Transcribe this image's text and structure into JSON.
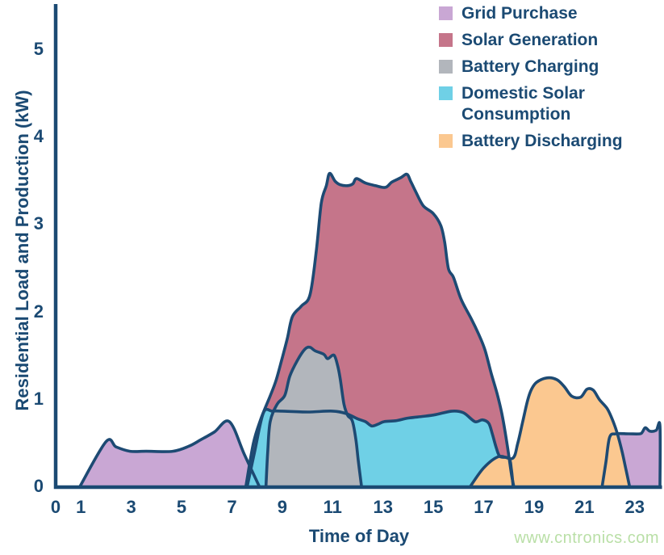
{
  "chart_data": {
    "type": "area",
    "title": "",
    "xlabel": "Time of Day",
    "ylabel": "Residential Load and Production (kW)",
    "xlim": [
      0,
      24
    ],
    "ylim": [
      0,
      5.5
    ],
    "x_ticks": [
      0,
      1,
      3,
      5,
      7,
      9,
      11,
      13,
      15,
      17,
      19,
      21,
      23
    ],
    "y_ticks": [
      0,
      1,
      2,
      3,
      4,
      5
    ],
    "grid": false,
    "legend_position": "top-right",
    "outline_color": "#1d4a73",
    "axis_color": "#1b4a73",
    "series": [
      {
        "id": "grid-purchase",
        "name": "Grid Purchase",
        "color": "#c9a7d4",
        "segments": [
          [
            [
              0.95,
              0
            ],
            [
              2.0,
              0.52
            ],
            [
              2.4,
              0.46
            ],
            [
              2.95,
              0.41
            ],
            [
              3.6,
              0.41
            ],
            [
              4.65,
              0.41
            ],
            [
              5.3,
              0.47
            ],
            [
              5.75,
              0.54
            ],
            [
              6.3,
              0.63
            ],
            [
              6.9,
              0.75
            ],
            [
              7.5,
              0.37
            ],
            [
              8.1,
              0
            ]
          ],
          [
            [
              21.7,
              0
            ],
            [
              21.85,
              0.28
            ],
            [
              22.0,
              0.57
            ],
            [
              22.25,
              0.61
            ],
            [
              22.75,
              0.61
            ],
            [
              23.2,
              0.61
            ],
            [
              23.3,
              0.63
            ],
            [
              23.42,
              0.68
            ],
            [
              23.6,
              0.64
            ],
            [
              23.85,
              0.65
            ],
            [
              24,
              0.7
            ],
            [
              24,
              0
            ]
          ]
        ]
      },
      {
        "id": "solar-generation",
        "name": "Solar Generation",
        "color": "#c5758a",
        "segments": [
          [
            [
              7.55,
              0
            ],
            [
              7.85,
              0.5
            ],
            [
              8.15,
              0.78
            ],
            [
              8.5,
              1.03
            ],
            [
              8.75,
              1.22
            ],
            [
              9.0,
              1.48
            ],
            [
              9.2,
              1.7
            ],
            [
              9.4,
              1.95
            ],
            [
              9.75,
              2.07
            ],
            [
              10.1,
              2.2
            ],
            [
              10.35,
              2.7
            ],
            [
              10.55,
              3.25
            ],
            [
              10.75,
              3.45
            ],
            [
              10.88,
              3.59
            ],
            [
              11.1,
              3.5
            ],
            [
              11.3,
              3.46
            ],
            [
              11.6,
              3.45
            ],
            [
              11.8,
              3.47
            ],
            [
              11.95,
              3.53
            ],
            [
              12.3,
              3.48
            ],
            [
              12.7,
              3.45
            ],
            [
              13.1,
              3.43
            ],
            [
              13.35,
              3.49
            ],
            [
              13.7,
              3.54
            ],
            [
              13.95,
              3.58
            ],
            [
              14.1,
              3.5
            ],
            [
              14.3,
              3.38
            ],
            [
              14.6,
              3.22
            ],
            [
              15.0,
              3.13
            ],
            [
              15.3,
              2.99
            ],
            [
              15.45,
              2.8
            ],
            [
              15.6,
              2.5
            ],
            [
              15.8,
              2.4
            ],
            [
              16.1,
              2.15
            ],
            [
              16.5,
              1.93
            ],
            [
              16.8,
              1.75
            ],
            [
              17.05,
              1.57
            ],
            [
              17.3,
              1.3
            ],
            [
              17.55,
              1.05
            ],
            [
              17.75,
              0.8
            ],
            [
              17.95,
              0.45
            ],
            [
              18.1,
              0.15
            ],
            [
              18.2,
              0
            ]
          ]
        ]
      },
      {
        "id": "battery-charging",
        "name": "Battery Charging",
        "color": "#b2b6bc",
        "segments": [
          [
            [
              8.35,
              0
            ],
            [
              8.42,
              0.4
            ],
            [
              8.52,
              0.75
            ],
            [
              8.8,
              0.95
            ],
            [
              9.1,
              1.05
            ],
            [
              9.3,
              1.27
            ],
            [
              9.6,
              1.45
            ],
            [
              9.9,
              1.58
            ],
            [
              10.1,
              1.6
            ],
            [
              10.3,
              1.56
            ],
            [
              10.65,
              1.52
            ],
            [
              10.8,
              1.47
            ],
            [
              11.05,
              1.51
            ],
            [
              11.2,
              1.39
            ],
            [
              11.3,
              1.24
            ],
            [
              11.45,
              0.95
            ],
            [
              11.6,
              0.82
            ],
            [
              11.78,
              0.76
            ],
            [
              11.92,
              0.55
            ],
            [
              12.02,
              0.3
            ],
            [
              12.15,
              0
            ]
          ]
        ]
      },
      {
        "id": "domestic-solar-consumption",
        "name": "Domestic Solar Consumption",
        "color": "#6fd0e6",
        "segments": [
          [
            [
              7.6,
              0
            ],
            [
              7.9,
              0.4
            ],
            [
              8.25,
              0.85
            ],
            [
              8.6,
              0.87
            ],
            [
              9.0,
              0.87
            ],
            [
              10.0,
              0.86
            ],
            [
              11.0,
              0.87
            ],
            [
              11.55,
              0.84
            ],
            [
              12.0,
              0.78
            ],
            [
              12.3,
              0.75
            ],
            [
              12.55,
              0.7
            ],
            [
              12.8,
              0.72
            ],
            [
              13.05,
              0.75
            ],
            [
              13.5,
              0.76
            ],
            [
              14.0,
              0.79
            ],
            [
              14.6,
              0.81
            ],
            [
              15.1,
              0.83
            ],
            [
              15.75,
              0.87
            ],
            [
              16.2,
              0.85
            ],
            [
              16.65,
              0.75
            ],
            [
              16.95,
              0.77
            ],
            [
              17.2,
              0.73
            ],
            [
              17.35,
              0.6
            ],
            [
              17.5,
              0.45
            ],
            [
              17.65,
              0.35
            ],
            [
              18.0,
              0.33
            ],
            [
              18.1,
              0.2
            ],
            [
              18.17,
              0
            ]
          ]
        ]
      },
      {
        "id": "battery-discharging",
        "name": "Battery Discharging",
        "color": "#fbc890",
        "segments": [
          [
            [
              16.45,
              0
            ],
            [
              17.0,
              0.22
            ],
            [
              17.6,
              0.35
            ],
            [
              18.15,
              0.33
            ],
            [
              18.35,
              0.5
            ],
            [
              18.55,
              0.75
            ],
            [
              18.75,
              1.0
            ],
            [
              18.9,
              1.12
            ],
            [
              19.1,
              1.2
            ],
            [
              19.5,
              1.25
            ],
            [
              19.9,
              1.23
            ],
            [
              20.2,
              1.15
            ],
            [
              20.5,
              1.04
            ],
            [
              20.85,
              1.03
            ],
            [
              21.1,
              1.12
            ],
            [
              21.35,
              1.11
            ],
            [
              21.6,
              1.0
            ],
            [
              21.9,
              0.9
            ],
            [
              22.1,
              0.78
            ],
            [
              22.3,
              0.62
            ],
            [
              22.5,
              0.4
            ],
            [
              22.65,
              0.2
            ],
            [
              22.8,
              0
            ]
          ]
        ]
      }
    ],
    "fill_order": [
      "grid-purchase",
      "solar-generation",
      "domestic-solar-consumption",
      "battery-charging",
      "battery-discharging"
    ]
  },
  "legend": {
    "items": [
      {
        "id": "grid-purchase",
        "label": "Grid Purchase",
        "color": "#c9a7d4"
      },
      {
        "id": "solar-generation",
        "label": "Solar Generation",
        "color": "#c5758a"
      },
      {
        "id": "battery-charging",
        "label": "Battery Charging",
        "color": "#b2b6bc"
      },
      {
        "id": "domestic-solar-consumption",
        "label": "Domestic Solar Consumption",
        "color": "#6fd0e6"
      },
      {
        "id": "battery-discharging",
        "label": "Battery Discharging",
        "color": "#fbc890"
      }
    ]
  },
  "footer": {
    "watermark": "www.cntronics.com"
  }
}
